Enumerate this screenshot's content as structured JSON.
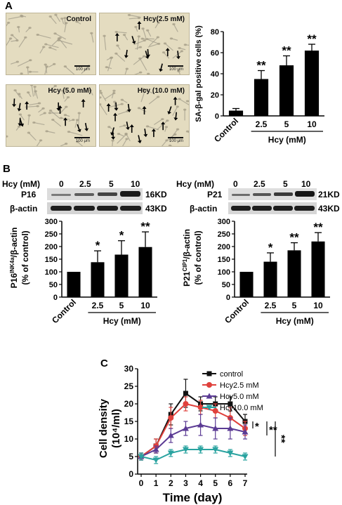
{
  "panels": {
    "a": "A",
    "b": "B",
    "c": "C"
  },
  "micrographs": [
    {
      "condition": "Control",
      "scale": "100 μm",
      "arrows": 0
    },
    {
      "condition": "Hcy(2.5 mM)",
      "scale": "100 μm",
      "arrows": 9
    },
    {
      "condition": "Hcy (5.0 mM)",
      "scale": "100 μm",
      "arrows": 11
    },
    {
      "condition": "Hcy (10.0 mM)",
      "scale": "100 μm",
      "arrows": 16
    }
  ],
  "western": {
    "hcy_label": "Hcy (mM)",
    "lanes": [
      "0",
      "2.5",
      "5",
      "10"
    ],
    "left": {
      "protein": "P16",
      "protein_kd": "16KD",
      "loading": "β-actin",
      "loading_kd": "43KD"
    },
    "right": {
      "protein": "P21",
      "protein_kd": "21KD",
      "loading": "β-actin",
      "loading_kd": "43KD"
    }
  },
  "chart_data": [
    {
      "type": "bar",
      "categories": [
        "Control",
        "2.5",
        "5",
        "10"
      ],
      "values": [
        5,
        35,
        48,
        62
      ],
      "errors": [
        2,
        8,
        9,
        6
      ],
      "significance": [
        "",
        "**",
        "**",
        "**"
      ],
      "ylabel": "SA-β-gal positive cells (%)",
      "xlabel": "Hcy (mM)",
      "ylim": [
        0,
        80
      ],
      "yticks": [
        "0",
        "20",
        "40",
        "60",
        "80"
      ]
    },
    {
      "type": "bar",
      "categories": [
        "Control",
        "2.5",
        "5",
        "10"
      ],
      "values": [
        100,
        138,
        168,
        198
      ],
      "errors": [
        0,
        45,
        55,
        60
      ],
      "significance": [
        "",
        "*",
        "*",
        "**"
      ],
      "ylabel": "P16INK4a/β-actin (% of control)",
      "xlabel": "Hcy (mM)",
      "ylim": [
        0,
        300
      ],
      "yticks": [
        "0",
        "50",
        "100",
        "150",
        "200",
        "250",
        "300"
      ]
    },
    {
      "type": "bar",
      "categories": [
        "Control",
        "2.5",
        "5",
        "10"
      ],
      "values": [
        100,
        140,
        185,
        220
      ],
      "errors": [
        0,
        35,
        30,
        35
      ],
      "significance": [
        "",
        "*",
        "**",
        "**"
      ],
      "ylabel": "P21CIP1/β-actin (% of control)",
      "xlabel": "Hcy (mM)",
      "ylim": [
        0,
        300
      ],
      "yticks": [
        "0",
        "50",
        "100",
        "150",
        "200",
        "250",
        "300"
      ]
    },
    {
      "type": "line",
      "x": [
        0,
        1,
        2,
        3,
        4,
        5,
        6,
        7
      ],
      "xlabel": "Time (day)",
      "ylabel": "Cell density (10⁴/ml)",
      "ylim": [
        0,
        30
      ],
      "yticks": [
        "0",
        "5",
        "10",
        "15",
        "20",
        "25",
        "30"
      ],
      "xticks": [
        "0",
        "1",
        "2",
        "3",
        "4",
        "5",
        "6",
        "7"
      ],
      "series": [
        {
          "name": "control",
          "color": "#111111",
          "marker": "square",
          "values": [
            5,
            8,
            17,
            23,
            20,
            20,
            20,
            15
          ],
          "errors": [
            1,
            2,
            3,
            4,
            2,
            2,
            2,
            2
          ]
        },
        {
          "name": "Hcy2.5 mM",
          "color": "#e0413c",
          "marker": "circle",
          "values": [
            5,
            8,
            16,
            20,
            19,
            18,
            16,
            13
          ],
          "errors": [
            1,
            2,
            3,
            2,
            2,
            2,
            3,
            2
          ]
        },
        {
          "name": "Hcy5.0 mM",
          "color": "#5b3b94",
          "marker": "triangle-up",
          "values": [
            5,
            7,
            11,
            13,
            14,
            13,
            13,
            12
          ],
          "errors": [
            1,
            1,
            2,
            2,
            3,
            3,
            3,
            2
          ]
        },
        {
          "name": "Hcy10.0 mM",
          "color": "#2aa3a0",
          "marker": "triangle-down",
          "values": [
            5,
            4,
            6,
            7,
            7,
            7,
            6,
            5
          ],
          "errors": [
            1,
            1,
            1,
            1,
            1,
            1,
            1,
            1
          ]
        }
      ],
      "significance_marks": [
        "*",
        "**",
        "**"
      ]
    }
  ]
}
